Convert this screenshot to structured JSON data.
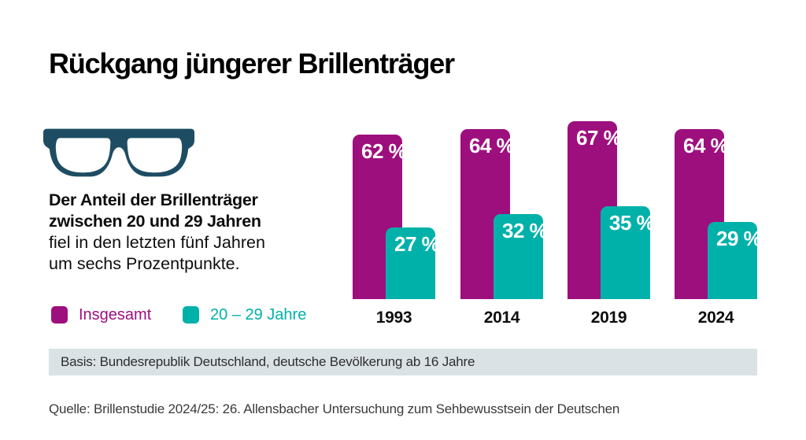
{
  "title": "Rückgang jüngerer Brillenträger",
  "description": {
    "bold_line1": "Der Anteil der Brillenträger",
    "bold_line2": "zwischen 20 und 29 Jahren",
    "line3": "fiel in den letzten fünf Jahren",
    "line4": "um sechs Prozentpunkte."
  },
  "icons": {
    "glasses": "glasses-icon"
  },
  "legend": [
    {
      "label": "Insgesamt",
      "color": "#9e0f7e"
    },
    {
      "label": "20 – 29 Jahre",
      "color": "#00b1aa"
    }
  ],
  "chart_data": {
    "type": "bar",
    "categories": [
      "1993",
      "2014",
      "2019",
      "2024"
    ],
    "series": [
      {
        "name": "Insgesamt",
        "color": "#9e0f7e",
        "values": [
          62,
          64,
          67,
          64
        ]
      },
      {
        "name": "20 – 29 Jahre",
        "color": "#00b1aa",
        "values": [
          27,
          32,
          35,
          29
        ]
      }
    ],
    "value_suffix": " %",
    "ylim": [
      0,
      70
    ],
    "grid": false,
    "legend_position": "bottom-left",
    "bar_labels_inside_top": true
  },
  "footer": {
    "basis": "Basis: Bundesrepublik Deutschland, deutsche Bevölkerung ab 16 Jahre",
    "source": "Quelle: Brillenstudie 2024/25: 26. Allensbacher Untersuchung zum Sehbewusstsein der Deutschen"
  },
  "colors": {
    "magenta": "#9e0f7e",
    "teal": "#00b1aa",
    "petrol": "#1e4d63",
    "basis_bg": "#dbe2e5",
    "white": "#ffffff"
  }
}
